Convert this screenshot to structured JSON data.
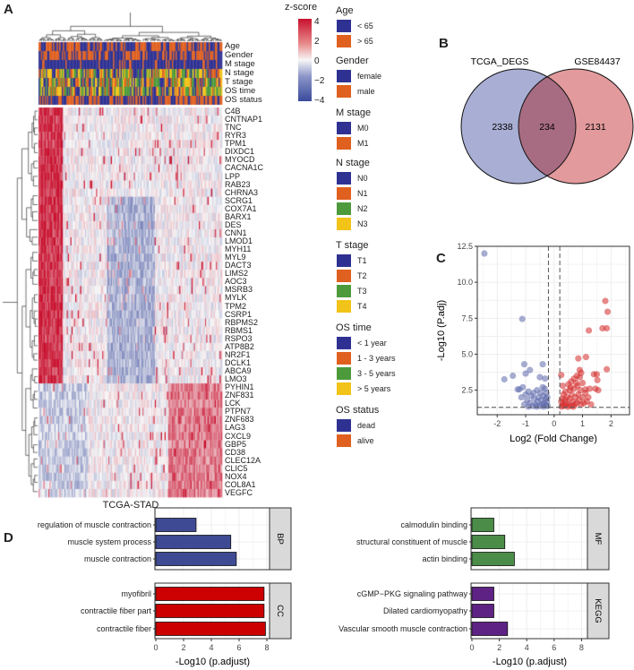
{
  "panels": {
    "a": "A",
    "b": "B",
    "c": "C",
    "d": "D"
  },
  "heatmap": {
    "caption": "TCGA-STAD",
    "annotation_rows": [
      "Age",
      "Gender",
      "M stage",
      "N stage",
      "T stage",
      "OS time",
      "OS status"
    ],
    "genes": [
      "C4B",
      "CNTNAP1",
      "TNC",
      "RYR3",
      "TPM1",
      "DIXDC1",
      "MYOCD",
      "CACNA1C",
      "LPP",
      "RAB23",
      "CHRNA3",
      "SCRG1",
      "COX7A1",
      "BARX1",
      "DES",
      "CNN1",
      "LMOD1",
      "MYH11",
      "MYL9",
      "DACT3",
      "LIMS2",
      "AOC3",
      "MSRB3",
      "MYLK",
      "TPM2",
      "CSRP1",
      "RBPMS2",
      "RBMS1",
      "RSPO3",
      "ATP8B2",
      "NR2F1",
      "DCLK1",
      "ABCA9",
      "LMO3",
      "PYHIN1",
      "ZNF831",
      "LCK",
      "PTPN7",
      "ZNF683",
      "LAG3",
      "CXCL9",
      "GBP5",
      "CD38",
      "CLEC12A",
      "CLIC5",
      "NOX4",
      "COL8A1",
      "VEGFC"
    ],
    "zscore": {
      "title": "z-score",
      "ticks": [
        "4",
        "2",
        "0",
        "−2",
        "−4"
      ],
      "colors": {
        "high": "#c8102e",
        "mid": "#f7f7f7",
        "low": "#3a4a9c"
      }
    },
    "legends": [
      {
        "title": "Age",
        "items": [
          {
            "label": "< 65",
            "color": "#2e3192"
          },
          {
            "label": "> 65",
            "color": "#e0601f"
          }
        ]
      },
      {
        "title": "Gender",
        "items": [
          {
            "label": "female",
            "color": "#2e3192"
          },
          {
            "label": "male",
            "color": "#e0601f"
          }
        ]
      },
      {
        "title": "M  stage",
        "items": [
          {
            "label": "M0",
            "color": "#2e3192"
          },
          {
            "label": "M1",
            "color": "#e0601f"
          }
        ]
      },
      {
        "title": "N  stage",
        "items": [
          {
            "label": "N0",
            "color": "#2e3192"
          },
          {
            "label": "N1",
            "color": "#e0601f"
          },
          {
            "label": "N2",
            "color": "#4c9a3c"
          },
          {
            "label": "N3",
            "color": "#f2c318"
          }
        ]
      },
      {
        "title": "T  stage",
        "items": [
          {
            "label": "T1",
            "color": "#2e3192"
          },
          {
            "label": "T2",
            "color": "#e0601f"
          },
          {
            "label": "T3",
            "color": "#4c9a3c"
          },
          {
            "label": "T4",
            "color": "#f2c318"
          }
        ]
      },
      {
        "title": "OS time",
        "items": [
          {
            "label": "< 1 year",
            "color": "#2e3192"
          },
          {
            "label": "1 - 3 years",
            "color": "#e0601f"
          },
          {
            "label": "3 - 5 years",
            "color": "#4c9a3c"
          },
          {
            "label": "> 5 years",
            "color": "#f2c318"
          }
        ]
      },
      {
        "title": "OS status",
        "items": [
          {
            "label": "dead",
            "color": "#2e3192"
          },
          {
            "label": "alive",
            "color": "#e0601f"
          }
        ]
      }
    ]
  },
  "venn": {
    "sets": [
      {
        "label": "TCGA_DEGS",
        "only": "2338",
        "color": "#a9aed4"
      },
      {
        "label": "GSE84437",
        "only": "2131",
        "color": "#e29a9c"
      }
    ],
    "overlap": "234",
    "overlap_color": "#a86c82"
  },
  "chart_data": [
    {
      "type": "scatter",
      "title": "",
      "xlabel": "Log2 (Fold Change)",
      "ylabel": "-Log10 (P.adj)",
      "xlim": [
        -2.7,
        2.65
      ],
      "ylim": [
        0.79,
        12.5
      ],
      "xticks": [
        "-2",
        "-1",
        "0",
        "1",
        "2"
      ],
      "xtick_values": [
        -2,
        -1,
        0,
        1,
        2
      ],
      "yticks": [
        "2.5",
        "5.0",
        "7.5",
        "10.0",
        "12.5"
      ],
      "ytick_values": [
        2.5,
        5,
        7.5,
        10,
        12.5
      ],
      "thresholds": {
        "fc": [
          -0.2,
          0.2
        ],
        "padj": 1.3
      },
      "grid": true,
      "series": [
        {
          "name": "down",
          "color": "#5e6aab",
          "points": [
            [
              -2.45,
              12.0
            ],
            [
              -1.12,
              7.45
            ],
            [
              -1.75,
              3.25
            ],
            [
              -1.45,
              3.5
            ],
            [
              -1.05,
              4.3
            ],
            [
              -1.0,
              3.65
            ],
            [
              -0.85,
              3.9
            ],
            [
              -0.4,
              4.3
            ],
            [
              -0.5,
              3.4
            ],
            [
              -0.32,
              3.3
            ],
            [
              -1.28,
              2.55
            ],
            [
              -1.22,
              2.55
            ],
            [
              -1.15,
              2.0
            ],
            [
              -1.1,
              2.7
            ],
            [
              -1.0,
              2.2
            ],
            [
              -0.95,
              1.8
            ],
            [
              -0.9,
              2.4
            ],
            [
              -0.85,
              1.6
            ],
            [
              -0.8,
              2.1
            ],
            [
              -0.75,
              1.4
            ],
            [
              -0.72,
              2.3
            ],
            [
              -0.7,
              1.9
            ],
            [
              -0.65,
              1.5
            ],
            [
              -0.6,
              2.5
            ],
            [
              -0.58,
              1.7
            ],
            [
              -0.55,
              2.0
            ],
            [
              -0.5,
              1.4
            ],
            [
              -0.48,
              2.3
            ],
            [
              -0.45,
              1.8
            ],
            [
              -0.42,
              1.5
            ],
            [
              -0.4,
              2.7
            ],
            [
              -0.38,
              2.1
            ],
            [
              -0.35,
              1.6
            ],
            [
              -0.33,
              2.6
            ],
            [
              -0.3,
              1.9
            ],
            [
              -0.28,
              1.45
            ],
            [
              -0.27,
              2.3
            ],
            [
              -0.25,
              1.7
            ],
            [
              -0.24,
              2.0
            ],
            [
              -0.23,
              1.4
            ],
            [
              -1.05,
              1.5
            ],
            [
              -0.9,
              1.35
            ],
            [
              -0.62,
              1.35
            ],
            [
              -0.37,
              1.35
            ]
          ]
        },
        {
          "name": "up",
          "color": "#d42a2a",
          "points": [
            [
              1.8,
              8.7
            ],
            [
              1.88,
              7.95
            ],
            [
              1.7,
              6.8
            ],
            [
              1.85,
              6.8
            ],
            [
              1.22,
              6.65
            ],
            [
              1.85,
              3.95
            ],
            [
              1.12,
              4.8
            ],
            [
              0.85,
              4.7
            ],
            [
              0.25,
              3.55
            ],
            [
              0.3,
              2.8
            ],
            [
              1.4,
              3.6
            ],
            [
              1.5,
              3.6
            ],
            [
              1.52,
              3.2
            ],
            [
              1.55,
              2.5
            ],
            [
              1.45,
              2.6
            ],
            [
              1.2,
              2.0
            ],
            [
              1.1,
              2.55
            ],
            [
              1.0,
              3.0
            ],
            [
              0.9,
              3.9
            ],
            [
              0.95,
              3.7
            ],
            [
              0.9,
              3.4
            ],
            [
              0.8,
              3.5
            ],
            [
              0.7,
              3.3
            ],
            [
              0.6,
              3.1
            ],
            [
              0.55,
              2.5
            ],
            [
              0.5,
              2.9
            ],
            [
              0.45,
              2.0
            ],
            [
              0.42,
              1.6
            ],
            [
              0.4,
              2.4
            ],
            [
              0.38,
              1.8
            ],
            [
              0.35,
              1.4
            ],
            [
              0.33,
              2.2
            ],
            [
              0.3,
              1.5
            ],
            [
              0.28,
              1.9
            ],
            [
              0.26,
              1.35
            ],
            [
              0.25,
              1.7
            ],
            [
              0.5,
              1.5
            ],
            [
              0.55,
              1.9
            ],
            [
              0.6,
              1.4
            ],
            [
              0.62,
              2.2
            ],
            [
              0.65,
              1.7
            ],
            [
              0.7,
              2.6
            ],
            [
              0.72,
              1.5
            ],
            [
              0.75,
              2.0
            ],
            [
              0.8,
              1.6
            ],
            [
              0.82,
              2.8
            ],
            [
              0.85,
              2.2
            ],
            [
              0.88,
              1.8
            ],
            [
              0.92,
              2.5
            ],
            [
              0.95,
              1.5
            ],
            [
              1.0,
              2.0
            ],
            [
              1.05,
              1.6
            ],
            [
              1.1,
              2.3
            ],
            [
              1.15,
              1.7
            ],
            [
              1.25,
              2.6
            ],
            [
              1.3,
              1.5
            ],
            [
              0.48,
              1.35
            ],
            [
              0.68,
              1.35
            ],
            [
              0.58,
              2.7
            ],
            [
              0.78,
              3.0
            ]
          ]
        }
      ]
    },
    {
      "type": "bar",
      "orientation": "horizontal",
      "xlabel": "-Log10 (p.adjust)",
      "xlim": [
        0,
        8.3
      ],
      "xticks": [
        "0",
        "2",
        "4",
        "6",
        "8"
      ],
      "xtick_values": [
        0,
        2,
        4,
        6,
        8
      ],
      "facets": [
        {
          "name": "BP",
          "color": "#3f4a94",
          "categories": [
            "regulation of muscle contraction",
            "muscle system process",
            "muscle contraction"
          ],
          "values": [
            2.9,
            5.4,
            5.8
          ]
        },
        {
          "name": "CC",
          "color": "#cc0000",
          "categories": [
            "myofibril",
            "contractile fiber part",
            "contractile fiber"
          ],
          "values": [
            7.8,
            7.8,
            7.9
          ]
        }
      ]
    },
    {
      "type": "bar",
      "orientation": "horizontal",
      "xlabel": "-Log10 (p.adjust)",
      "xlim": [
        0,
        8.3
      ],
      "xticks": [
        "0",
        "2",
        "4",
        "6",
        "8"
      ],
      "xtick_values": [
        0,
        2,
        4,
        6,
        8
      ],
      "facets": [
        {
          "name": "MF",
          "color": "#4a8c48",
          "categories": [
            "calmodulin binding",
            "structural constituent of muscle",
            "actin binding"
          ],
          "values": [
            1.6,
            2.4,
            3.1
          ]
        },
        {
          "name": "KEGG",
          "color": "#5e2284",
          "categories": [
            "cGMP−PKG signaling pathway",
            "Dilated cardiomyopathy",
            "Vascular smooth muscle contraction"
          ],
          "values": [
            1.6,
            1.6,
            2.6
          ]
        }
      ]
    }
  ]
}
